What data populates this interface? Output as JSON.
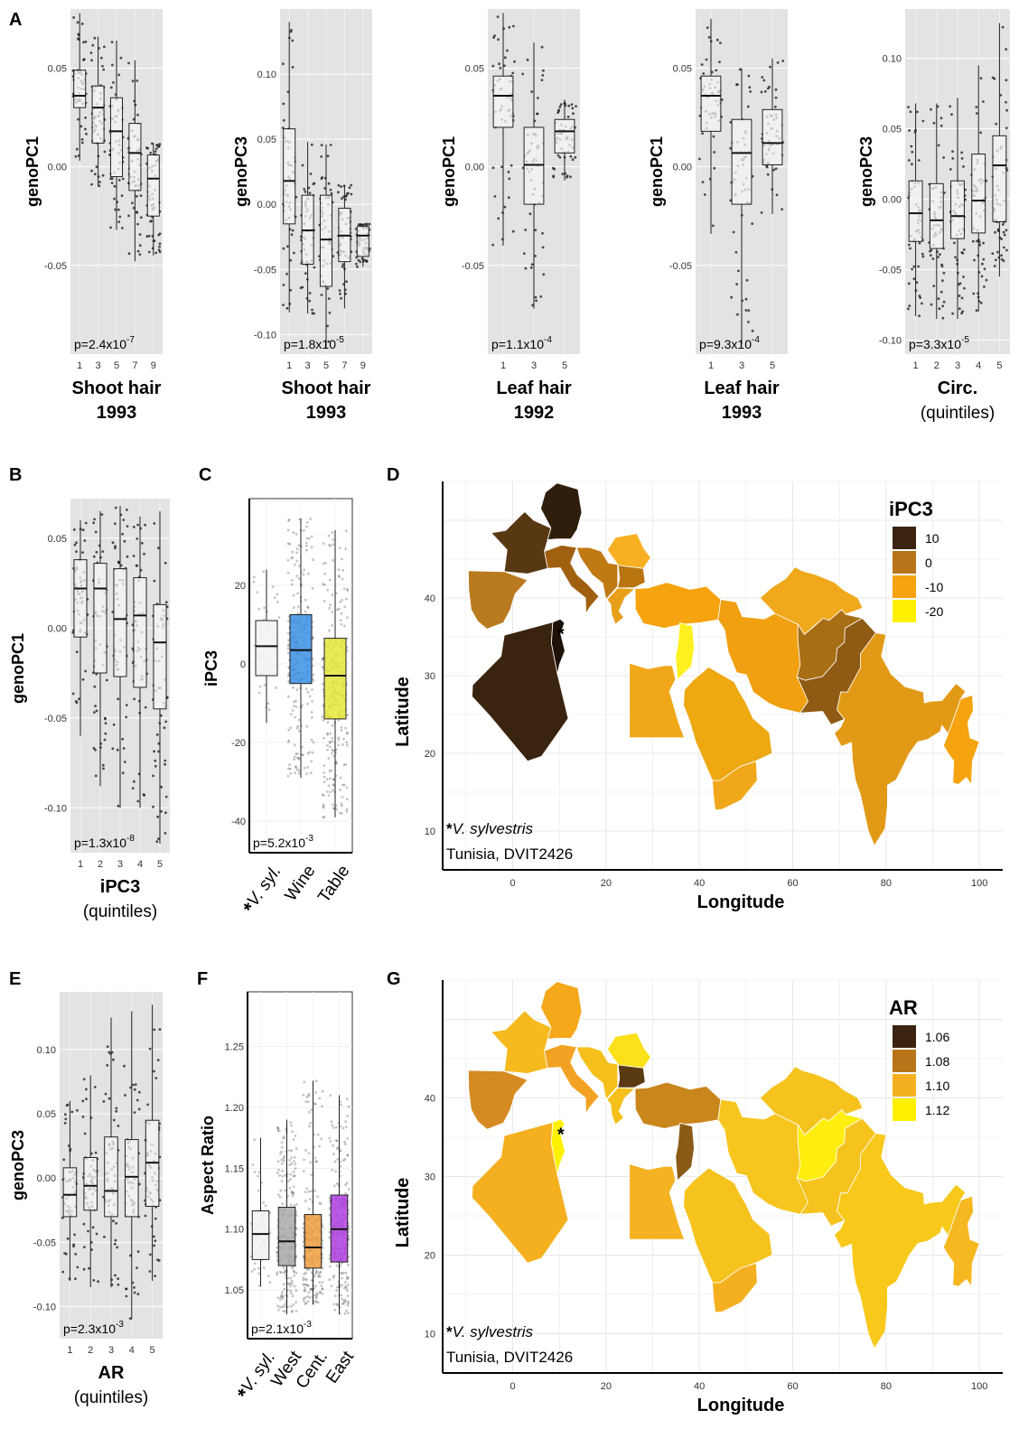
{
  "chart_data": [
    {
      "panel_label": "A",
      "type": "box",
      "ylabel": "genoPC1",
      "xlabel": "Shoot hair",
      "xsub": "1993",
      "categories": [
        "1",
        "3",
        "5",
        "7",
        "9"
      ],
      "yticks": [
        0.05,
        0.0,
        -0.05
      ],
      "ytick_labels": [
        "0.05",
        "0.00",
        "-0.05"
      ],
      "ylim": [
        -0.095,
        0.08
      ],
      "boxes": [
        {
          "q1": 0.03,
          "med": 0.036,
          "q3": 0.049,
          "lo": 0.003,
          "hi": 0.078
        },
        {
          "q1": 0.012,
          "med": 0.03,
          "q3": 0.041,
          "lo": -0.01,
          "hi": 0.066
        },
        {
          "q1": -0.005,
          "med": 0.018,
          "q3": 0.035,
          "lo": -0.032,
          "hi": 0.064
        },
        {
          "q1": -0.012,
          "med": 0.007,
          "q3": 0.022,
          "lo": -0.048,
          "hi": 0.054
        },
        {
          "q1": -0.025,
          "med": -0.006,
          "q3": 0.006,
          "lo": -0.045,
          "hi": 0.012
        }
      ],
      "p_value": "p=2.4x10",
      "p_exp": "-7"
    },
    {
      "panel_label": "",
      "type": "box",
      "ylabel": "genoPC3",
      "xlabel": "Shoot hair",
      "xsub": "1993",
      "categories": [
        "1",
        "3",
        "5",
        "7",
        "9"
      ],
      "yticks": [
        0.1,
        0.05,
        0.0,
        -0.05,
        -0.1
      ],
      "ytick_labels": [
        "0.10",
        "0.05",
        "0.00",
        "-0.05",
        "-0.10"
      ],
      "ylim": [
        -0.115,
        0.15
      ],
      "boxes": [
        {
          "q1": -0.015,
          "med": 0.018,
          "q3": 0.058,
          "lo": -0.083,
          "hi": 0.14
        },
        {
          "q1": -0.046,
          "med": -0.02,
          "q3": 0.007,
          "lo": -0.084,
          "hi": 0.048
        },
        {
          "q1": -0.063,
          "med": -0.027,
          "q3": 0.007,
          "lo": -0.11,
          "hi": 0.046
        },
        {
          "q1": -0.044,
          "med": -0.024,
          "q3": -0.003,
          "lo": -0.08,
          "hi": 0.015
        },
        {
          "q1": -0.04,
          "med": -0.024,
          "q3": -0.017,
          "lo": -0.048,
          "hi": -0.015
        }
      ],
      "p_value": "p=1.8x10",
      "p_exp": "-5"
    },
    {
      "panel_label": "",
      "type": "box",
      "ylabel": "genoPC1",
      "xlabel": "Leaf hair",
      "xsub": "1992",
      "categories": [
        "1",
        "3",
        "5"
      ],
      "yticks": [
        0.05,
        0.0,
        -0.05
      ],
      "ytick_labels": [
        "0.05",
        "0.00",
        "-0.05"
      ],
      "ylim": [
        -0.095,
        0.08
      ],
      "boxes": [
        {
          "q1": 0.02,
          "med": 0.036,
          "q3": 0.046,
          "lo": -0.04,
          "hi": 0.078
        },
        {
          "q1": -0.019,
          "med": 0.001,
          "q3": 0.02,
          "lo": -0.072,
          "hi": 0.063
        },
        {
          "q1": 0.007,
          "med": 0.018,
          "q3": 0.024,
          "lo": -0.007,
          "hi": 0.034
        }
      ],
      "p_value": "p=1.1x10",
      "p_exp": "-4"
    },
    {
      "panel_label": "",
      "type": "box",
      "ylabel": "genoPC1",
      "xlabel": "Leaf hair",
      "xsub": "1993",
      "categories": [
        "1",
        "3",
        "5"
      ],
      "yticks": [
        0.05,
        0.0,
        -0.05
      ],
      "ytick_labels": [
        "0.05",
        "0.00",
        "-0.05"
      ],
      "ylim": [
        -0.095,
        0.08
      ],
      "boxes": [
        {
          "q1": 0.018,
          "med": 0.036,
          "q3": 0.046,
          "lo": -0.034,
          "hi": 0.075
        },
        {
          "q1": -0.019,
          "med": 0.007,
          "q3": 0.024,
          "lo": -0.09,
          "hi": 0.05
        },
        {
          "q1": 0.001,
          "med": 0.012,
          "q3": 0.029,
          "lo": -0.024,
          "hi": 0.055
        }
      ],
      "p_value": "p=9.3x10",
      "p_exp": "-4"
    },
    {
      "panel_label": "",
      "type": "box",
      "ylabel": "genoPC3",
      "xlabel": "Circ.",
      "xsub": "(quintiles)",
      "categories": [
        "1",
        "2",
        "3",
        "4",
        "5"
      ],
      "yticks": [
        0.1,
        0.05,
        0.0,
        -0.05,
        -0.1
      ],
      "ytick_labels": [
        "0.10",
        "0.05",
        "0.00",
        "-0.05",
        "-0.10"
      ],
      "ylim": [
        -0.11,
        0.135
      ],
      "boxes": [
        {
          "q1": -0.03,
          "med": -0.01,
          "q3": 0.013,
          "lo": -0.083,
          "hi": 0.068
        },
        {
          "q1": -0.035,
          "med": -0.015,
          "q3": 0.011,
          "lo": -0.085,
          "hi": 0.068
        },
        {
          "q1": -0.028,
          "med": -0.012,
          "q3": 0.013,
          "lo": -0.085,
          "hi": 0.072
        },
        {
          "q1": -0.024,
          "med": -0.001,
          "q3": 0.032,
          "lo": -0.08,
          "hi": 0.095
        },
        {
          "q1": -0.016,
          "med": 0.024,
          "q3": 0.045,
          "lo": -0.055,
          "hi": 0.125
        }
      ],
      "p_value": "p=3.3x10",
      "p_exp": "-5"
    },
    {
      "panel_label": "B",
      "type": "box",
      "ylabel": "genoPC1",
      "xlabel": "iPC3",
      "xsub": "(quintiles)",
      "categories": [
        "1",
        "2",
        "3",
        "4",
        "5"
      ],
      "yticks": [
        0.05,
        0.0,
        -0.05,
        -0.1
      ],
      "ytick_labels": [
        "0.05",
        "0.00",
        "-0.05",
        "-0.10"
      ],
      "ylim": [
        -0.125,
        0.072
      ],
      "boxes": [
        {
          "q1": -0.005,
          "med": 0.022,
          "q3": 0.038,
          "lo": -0.06,
          "hi": 0.06
        },
        {
          "q1": -0.025,
          "med": 0.022,
          "q3": 0.036,
          "lo": -0.088,
          "hi": 0.065
        },
        {
          "q1": -0.027,
          "med": 0.005,
          "q3": 0.033,
          "lo": -0.1,
          "hi": 0.068
        },
        {
          "q1": -0.033,
          "med": 0.007,
          "q3": 0.028,
          "lo": -0.1,
          "hi": 0.062
        },
        {
          "q1": -0.045,
          "med": -0.008,
          "q3": 0.013,
          "lo": -0.12,
          "hi": 0.065
        }
      ],
      "p_value": "p=1.3x10",
      "p_exp": "-8"
    },
    {
      "panel_label": "C",
      "type": "box",
      "ylabel": "iPC3",
      "xlabel": "",
      "xsub": "",
      "categories": [
        "*V. syl.",
        "Wine",
        "Table"
      ],
      "colors": [
        "#f2f2f2",
        "#3b8fe4",
        "#e6e63c"
      ],
      "yticks": [
        20,
        0,
        -20,
        -40
      ],
      "ytick_labels": [
        "20",
        "0",
        "-20",
        "-40"
      ],
      "ylim": [
        -48,
        42
      ],
      "boxes": [
        {
          "q1": -3,
          "med": 4.5,
          "q3": 11,
          "lo": -15,
          "hi": 24
        },
        {
          "q1": -5,
          "med": 3.5,
          "q3": 12.5,
          "lo": -29,
          "hi": 37
        },
        {
          "q1": -14,
          "med": -3,
          "q3": 6.5,
          "lo": -39,
          "hi": 34
        }
      ],
      "p_value": "p=5.2x10",
      "p_exp": "-3"
    },
    {
      "panel_label": "E",
      "type": "box",
      "ylabel": "genoPC3",
      "xlabel": "AR",
      "xsub": "(quintiles)",
      "categories": [
        "1",
        "2",
        "3",
        "4",
        "5"
      ],
      "yticks": [
        0.1,
        0.05,
        0.0,
        -0.05,
        -0.1
      ],
      "ytick_labels": [
        "0.10",
        "0.05",
        "0.00",
        "-0.05",
        "-0.10"
      ],
      "ylim": [
        -0.125,
        0.145
      ],
      "boxes": [
        {
          "q1": -0.03,
          "med": -0.013,
          "q3": 0.008,
          "lo": -0.08,
          "hi": 0.06
        },
        {
          "q1": -0.025,
          "med": -0.006,
          "q3": 0.016,
          "lo": -0.085,
          "hi": 0.08
        },
        {
          "q1": -0.03,
          "med": -0.01,
          "q3": 0.032,
          "lo": -0.085,
          "hi": 0.125
        },
        {
          "q1": -0.03,
          "med": 0.001,
          "q3": 0.03,
          "lo": -0.11,
          "hi": 0.13
        },
        {
          "q1": -0.022,
          "med": 0.012,
          "q3": 0.045,
          "lo": -0.08,
          "hi": 0.135
        }
      ],
      "p_value": "p=2.3x10",
      "p_exp": "-3"
    },
    {
      "panel_label": "F",
      "type": "box",
      "ylabel": "Aspect Ratio",
      "xlabel": "",
      "xsub": "",
      "categories": [
        "*V. syl.",
        "West",
        "Cent.",
        "East"
      ],
      "colors": [
        "#f2f2f2",
        "#aaaaaa",
        "#f0a040",
        "#b040e0"
      ],
      "yticks": [
        1.25,
        1.2,
        1.15,
        1.1,
        1.05
      ],
      "ytick_labels": [
        "1.25",
        "1.20",
        "1.15",
        "1.10",
        "1.05"
      ],
      "ylim": [
        1.01,
        1.295
      ],
      "boxes": [
        {
          "q1": 1.075,
          "med": 1.096,
          "q3": 1.115,
          "lo": 1.053,
          "hi": 1.175
        },
        {
          "q1": 1.07,
          "med": 1.09,
          "q3": 1.118,
          "lo": 1.03,
          "hi": 1.19
        },
        {
          "q1": 1.068,
          "med": 1.085,
          "q3": 1.112,
          "lo": 1.038,
          "hi": 1.222
        },
        {
          "q1": 1.073,
          "med": 1.1,
          "q3": 1.128,
          "lo": 1.03,
          "hi": 1.21
        }
      ],
      "p_value": "p=2.1x10",
      "p_exp": "-3"
    }
  ],
  "maps": [
    {
      "panel_label": "D",
      "xlabel": "Longitude",
      "ylabel": "Latitude",
      "xticks": [
        0,
        20,
        40,
        60,
        80,
        100
      ],
      "yticks": [
        10,
        20,
        30,
        40
      ],
      "legend": {
        "title": "iPC3",
        "items": [
          {
            "label": "10",
            "color": "#3a2410"
          },
          {
            "label": "0",
            "color": "#b87418"
          },
          {
            "label": "-10",
            "color": "#f5a30f"
          },
          {
            "label": "-20",
            "color": "#fff000"
          }
        ]
      },
      "region_colors": {
        "france": "#583812",
        "germany": "#2f1e0b",
        "iberia": "#b97a20",
        "italy": "#a06010",
        "balkans": "#c07a14",
        "romania": "#f8b022",
        "bulgaria": "#b8750f",
        "greece": "#e8a01a",
        "algeria": "#3a2410",
        "tunisia": "#1e1208",
        "egypt": "#f0a81a",
        "levant": "#fff020",
        "turkey": "#f5a30f",
        "arabia": "#eda812",
        "iran": "#f0a010",
        "afghanistan": "#a86e14",
        "pakistan": "#8e5a14",
        "central_asia": "#f0a81c",
        "india": "#e29a16",
        "myanmar": "#f5a30f",
        "yemen": "#f0a81a"
      },
      "note_species": "*V. sylvestris",
      "note_site": "Tunisia, DVIT2426",
      "marker": "*"
    },
    {
      "panel_label": "G",
      "xlabel": "Longitude",
      "ylabel": "Latitude",
      "xticks": [
        0,
        20,
        40,
        60,
        80,
        100
      ],
      "yticks": [
        10,
        20,
        30,
        40
      ],
      "legend": {
        "title": "AR",
        "items": [
          {
            "label": "1.06",
            "color": "#3a2410"
          },
          {
            "label": "1.08",
            "color": "#b87418"
          },
          {
            "label": "1.10",
            "color": "#f5b020"
          },
          {
            "label": "1.12",
            "color": "#fff000"
          }
        ]
      },
      "region_colors": {
        "france": "#f6ba1e",
        "germany": "#f5a81a",
        "iberia": "#d68a22",
        "italy": "#f2a222",
        "balkans": "#f6c01c",
        "romania": "#fce01a",
        "bulgaria": "#5a3a12",
        "greece": "#f6c01c",
        "algeria": "#f5b020",
        "tunisia": "#fff200",
        "egypt": "#f5b222",
        "levant": "#8a5a16",
        "turkey": "#c9861c",
        "arabia": "#f6c21e",
        "iran": "#f6c61e",
        "afghanistan": "#ffee10",
        "pakistan": "#f6c21e",
        "central_asia": "#f6c21e",
        "india": "#f8c81a",
        "myanmar": "#f5b820",
        "yemen": "#f5b020"
      },
      "note_species": "*V. sylvestris",
      "note_site": "Tunisia, DVIT2426",
      "marker": "*"
    }
  ]
}
